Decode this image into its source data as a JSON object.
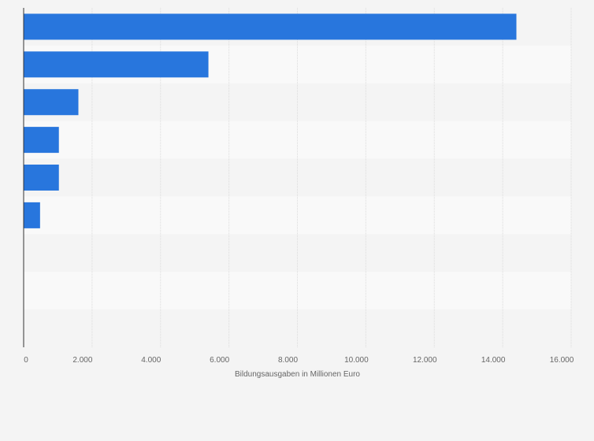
{
  "chart_data": {
    "type": "bar",
    "orientation": "horizontal",
    "categories": [
      "",
      "",
      "",
      "",
      "",
      "",
      "",
      "",
      ""
    ],
    "values": [
      14400,
      5400,
      1600,
      1030,
      1030,
      480,
      0,
      0,
      0
    ],
    "xlabel": "Bildungsausgaben in Millionen Euro",
    "ylabel": "",
    "xlim": [
      0,
      16000
    ],
    "x_ticks": [
      0,
      2000,
      4000,
      6000,
      8000,
      10000,
      12000,
      14000,
      16000
    ],
    "x_tick_labels": [
      "0",
      "2.000",
      "4.000",
      "6.000",
      "8.000",
      "10.000",
      "12.000",
      "14.000",
      "16.000"
    ],
    "grid": true,
    "legend": "none",
    "colors": {
      "bar": "#2876dd",
      "background": "#f4f4f4",
      "plot_row_light": "#f9f9f9",
      "plot_row_dark": "#f4f4f4",
      "gridline": "#dcdcdc",
      "axis": "#333333",
      "text": "#666666"
    }
  }
}
